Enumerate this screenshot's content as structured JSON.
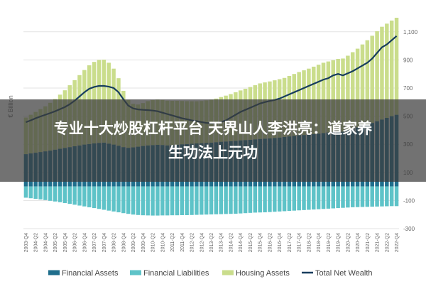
{
  "chart_data": {
    "type": "bar",
    "y_label": "€ Billion",
    "categories": [
      "2003-Q4",
      null,
      "2004-Q2",
      null,
      "2004-Q4",
      null,
      "2005-Q2",
      null,
      "2005-Q4",
      null,
      "2006-Q2",
      null,
      "2006-Q4",
      null,
      "2007-Q2",
      null,
      "2007-Q4",
      null,
      "2008-Q2",
      null,
      "2008-Q4",
      null,
      "2009-Q2",
      null,
      "2009-Q4",
      null,
      "2010-Q2",
      null,
      "2010-Q4",
      null,
      "2011-Q2",
      null,
      "2011-Q4",
      null,
      "2012-Q2",
      null,
      "2012-Q4",
      null,
      "2013-Q2",
      null,
      "2013-Q4",
      null,
      "2014-Q2",
      null,
      "2014-Q4",
      null,
      "2015-Q2",
      null,
      "2015-Q4",
      null,
      "2016-Q2",
      null,
      "2016-Q4",
      null,
      "2017-Q2",
      null,
      "2017-Q4",
      null,
      "2018-Q2",
      null,
      "2018-Q4",
      null,
      "2019-Q2",
      null,
      "2019-Q4",
      null,
      "2020-Q2",
      null,
      "2020-Q4",
      null,
      "2021-Q2",
      null,
      "2021-Q4",
      null,
      "2022-Q2",
      null,
      "2022-Q4"
    ],
    "series": [
      {
        "name": "Financial Assets",
        "type": "bar",
        "color": "#1f6e8c",
        "values": [
          230,
          235,
          240,
          245,
          250,
          255,
          262,
          268,
          274,
          280,
          286,
          292,
          298,
          302,
          306,
          310,
          312,
          305,
          298,
          290,
          280,
          275,
          278,
          283,
          288,
          292,
          294,
          296,
          295,
          292,
          294,
          297,
          300,
          302,
          304,
          306,
          308,
          310,
          312,
          315,
          318,
          320,
          322,
          325,
          328,
          330,
          332,
          335,
          338,
          340,
          342,
          345,
          348,
          352,
          356,
          360,
          364,
          366,
          368,
          372,
          376,
          380,
          384,
          388,
          392,
          390,
          400,
          410,
          420,
          430,
          440,
          452,
          464,
          476,
          488,
          500,
          510
        ]
      },
      {
        "name": "Financial Liabilities",
        "type": "bar",
        "color": "#5ec3c8",
        "values": [
          -80,
          -84,
          -88,
          -92,
          -97,
          -102,
          -107,
          -112,
          -118,
          -124,
          -130,
          -136,
          -142,
          -148,
          -154,
          -160,
          -166,
          -172,
          -178,
          -184,
          -190,
          -195,
          -200,
          -203,
          -205,
          -206,
          -207,
          -207,
          -206,
          -206,
          -205,
          -205,
          -204,
          -204,
          -203,
          -202,
          -201,
          -200,
          -199,
          -198,
          -197,
          -196,
          -195,
          -194,
          -192,
          -190,
          -188,
          -186,
          -185,
          -184,
          -182,
          -180,
          -178,
          -176,
          -174,
          -172,
          -170,
          -168,
          -166,
          -164,
          -162,
          -160,
          -158,
          -156,
          -154,
          -152,
          -150,
          -148,
          -147,
          -146,
          -145,
          -144,
          -143,
          -142,
          -141,
          -140,
          -140
        ]
      },
      {
        "name": "Housing Assets",
        "type": "bar",
        "color": "#cadd8c",
        "values": [
          260,
          275,
          290,
          305,
          320,
          340,
          360,
          385,
          410,
          440,
          470,
          500,
          530,
          560,
          580,
          590,
          590,
          575,
          540,
          480,
          400,
          340,
          310,
          300,
          305,
          315,
          320,
          322,
          320,
          318,
          315,
          312,
          308,
          305,
          302,
          300,
          300,
          302,
          305,
          310,
          318,
          326,
          335,
          345,
          355,
          365,
          375,
          385,
          395,
          400,
          405,
          410,
          415,
          420,
          430,
          440,
          450,
          460,
          470,
          480,
          490,
          500,
          505,
          510,
          515,
          520,
          530,
          545,
          560,
          580,
          600,
          620,
          640,
          660,
          670,
          680,
          690
        ]
      },
      {
        "name": "Total Net Wealth",
        "type": "line",
        "color": "#173d5e",
        "values": [
          457,
          470,
          485,
          498,
          510,
          522,
          535,
          550,
          565,
          585,
          610,
          640,
          670,
          695,
          708,
          715,
          715,
          710,
          700,
          670,
          620,
          575,
          555,
          548,
          545,
          543,
          540,
          535,
          525,
          515,
          505,
          495,
          485,
          478,
          470,
          465,
          458,
          452,
          450,
          452,
          458,
          470,
          490,
          510,
          530,
          545,
          560,
          575,
          590,
          600,
          608,
          615,
          625,
          640,
          655,
          670,
          685,
          700,
          715,
          730,
          745,
          760,
          770,
          790,
          800,
          790,
          805,
          820,
          840,
          860,
          880,
          910,
          950,
          990,
          1010,
          1040,
          1070
        ]
      }
    ],
    "ylim": [
      -300,
      1200
    ],
    "yticks": [
      -300,
      -100,
      100,
      300,
      500,
      700,
      900,
      {
        "value": 1100,
        "label": "1,100"
      }
    ],
    "grid": true,
    "legend": "bottom"
  },
  "overlay": {
    "lines": [
      "专业十大炒股杠杆平台 天界山人李洪亮：道家养",
      "生功法上元功"
    ]
  }
}
